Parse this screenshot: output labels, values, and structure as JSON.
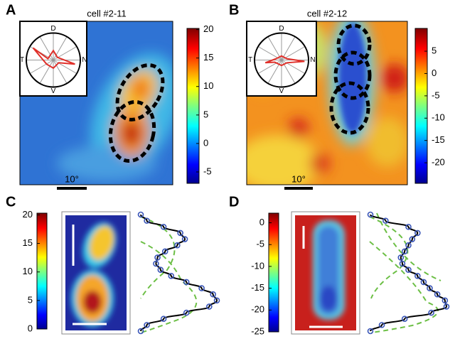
{
  "panels": [
    {
      "label": "A",
      "title": "cell #2-11",
      "scale_label": "10°",
      "polar_labels": [
        "D",
        "N",
        "V",
        "T"
      ],
      "colorbar": {
        "ylim": [
          -7,
          20.2
        ],
        "yticks": [
          -5,
          0,
          5,
          10,
          15,
          20
        ]
      }
    },
    {
      "label": "B",
      "title": "cell #2-12",
      "scale_label": "10°",
      "polar_labels": [
        "D",
        "N",
        "V",
        "T"
      ],
      "colorbar": {
        "ylim": [
          -24.6,
          10.1
        ],
        "yticks": [
          -20,
          -15,
          -10,
          -5,
          0,
          5
        ]
      }
    },
    {
      "label": "C",
      "colorbar": {
        "ylim": [
          0,
          20.3
        ],
        "yticks": [
          0,
          5,
          10,
          15,
          20
        ]
      },
      "profile": {
        "values": [
          0.0,
          0.08,
          0.3,
          0.52,
          0.58,
          0.48,
          0.32,
          0.22,
          0.2,
          0.26,
          0.4,
          0.6,
          0.8,
          0.95,
          1.0,
          0.9,
          0.6,
          0.3,
          0.08,
          0.0
        ]
      }
    },
    {
      "label": "D",
      "colorbar": {
        "ylim": [
          -25,
          2.2
        ],
        "yticks": [
          -25,
          -20,
          -15,
          -10,
          -5,
          0
        ]
      },
      "profile": {
        "values": [
          0.0,
          0.2,
          0.5,
          0.62,
          0.55,
          0.5,
          0.45,
          0.4,
          0.42,
          0.5,
          0.62,
          0.7,
          0.78,
          0.88,
          0.98,
          1.0,
          0.8,
          0.45,
          0.15,
          0.0
        ]
      }
    }
  ]
}
